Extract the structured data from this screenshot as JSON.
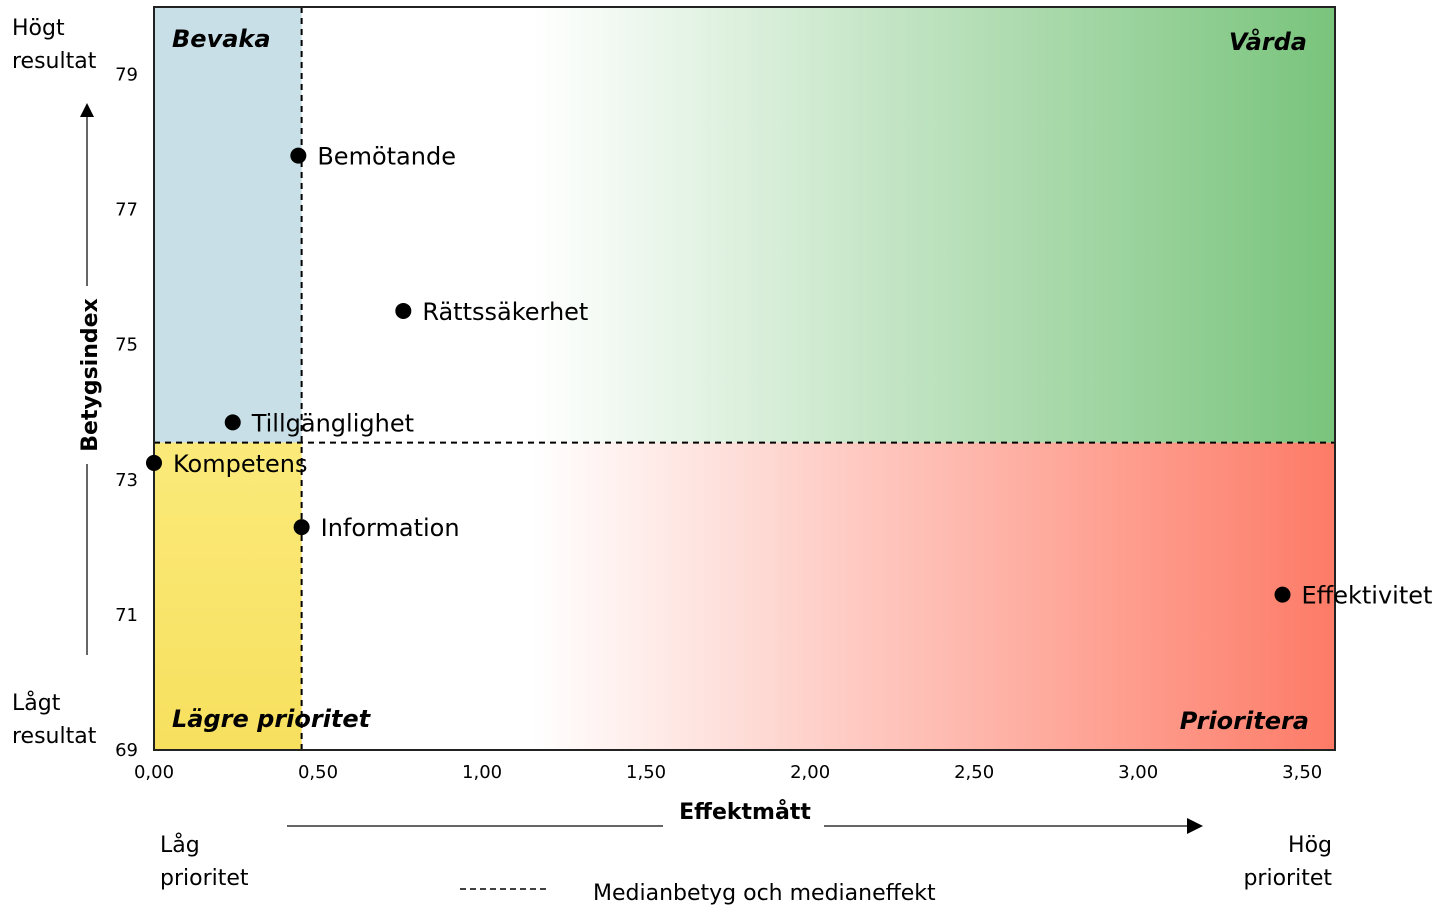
{
  "chart_data": {
    "type": "scatter",
    "title": "",
    "xlabel": "Effektmått",
    "ylabel": "Betygsindex",
    "xlim": [
      0,
      3.6
    ],
    "ylim": [
      69,
      80
    ],
    "x_ticks": [
      "0,00",
      "0,50",
      "1,00",
      "1,50",
      "2,00",
      "2,50",
      "3,00",
      "3,50"
    ],
    "y_ticks": [
      "69",
      "71",
      "73",
      "75",
      "77",
      "79"
    ],
    "median_effect": 0.45,
    "median_score": 73.55,
    "points": [
      {
        "label": "Bemötande",
        "x": 0.44,
        "y": 77.8
      },
      {
        "label": "Rättssäkerhet",
        "x": 0.76,
        "y": 75.5
      },
      {
        "label": "Tillgänglighet",
        "x": 0.24,
        "y": 73.85
      },
      {
        "label": "Kompetens",
        "x": 0.0,
        "y": 73.25
      },
      {
        "label": "Information",
        "x": 0.45,
        "y": 72.3
      },
      {
        "label": "Effektivitet",
        "x": 3.44,
        "y": 71.3
      }
    ],
    "quadrants": {
      "top_left": "Bevaka",
      "top_right": "Vårda",
      "bottom_left": "Lägre prioritet",
      "bottom_right": "Prioritera"
    },
    "y_axis_top_label": [
      "Högt",
      "resultat"
    ],
    "y_axis_bottom_label": [
      "Lågt",
      "resultat"
    ],
    "x_axis_left_label": [
      "Låg",
      "prioritet"
    ],
    "x_axis_right_label": [
      "Hög",
      "prioritet"
    ],
    "legend_label": "Medianbetyg och medianeffekt",
    "colors": {
      "watch": "#c8dfe7",
      "maintain": "#79c47c",
      "low_priority": "#f7e060",
      "prioritize": "#fd7b67",
      "marker": "#000000"
    }
  }
}
